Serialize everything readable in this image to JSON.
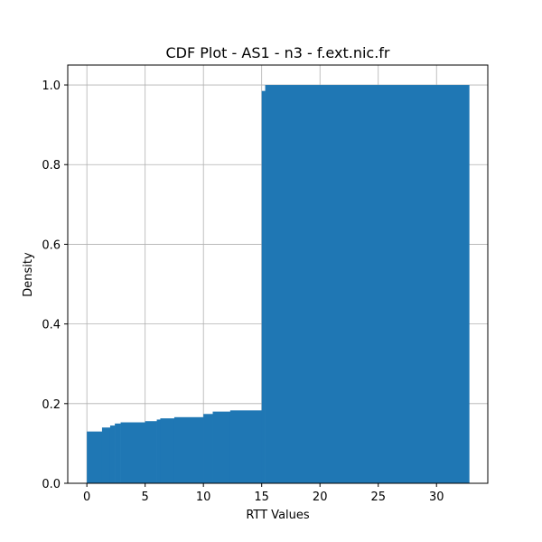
{
  "chart_data": {
    "type": "bar",
    "subtype": "cumulative-histogram",
    "title": "CDF Plot - AS1 - n3 - f.ext.nic.fr",
    "xlabel": "RTT Values",
    "ylabel": "Density",
    "xlim": [
      -1.64,
      34.4
    ],
    "ylim": [
      0,
      1.05
    ],
    "xticks": [
      0,
      5,
      10,
      15,
      20,
      25,
      30
    ],
    "yticks": [
      0.0,
      0.2,
      0.4,
      0.6,
      0.8,
      1.0
    ],
    "xtick_labels": [
      "0",
      "5",
      "10",
      "15",
      "20",
      "25",
      "30"
    ],
    "ytick_labels": [
      "0.0",
      "0.2",
      "0.4",
      "0.6",
      "0.8",
      "1.0"
    ],
    "grid": true,
    "bar_color": "#1f77b4",
    "steps": [
      {
        "x0": 0.0,
        "x1": 1.3,
        "y": 0.13
      },
      {
        "x0": 1.3,
        "x1": 2.0,
        "y": 0.14
      },
      {
        "x0": 2.0,
        "x1": 2.4,
        "y": 0.145
      },
      {
        "x0": 2.4,
        "x1": 2.9,
        "y": 0.15
      },
      {
        "x0": 2.9,
        "x1": 5.0,
        "y": 0.153
      },
      {
        "x0": 5.0,
        "x1": 6.0,
        "y": 0.156
      },
      {
        "x0": 6.0,
        "x1": 6.3,
        "y": 0.16
      },
      {
        "x0": 6.3,
        "x1": 7.5,
        "y": 0.163
      },
      {
        "x0": 7.5,
        "x1": 10.0,
        "y": 0.166
      },
      {
        "x0": 10.0,
        "x1": 10.8,
        "y": 0.174
      },
      {
        "x0": 10.8,
        "x1": 12.3,
        "y": 0.18
      },
      {
        "x0": 12.3,
        "x1": 15.0,
        "y": 0.183
      },
      {
        "x0": 15.0,
        "x1": 15.3,
        "y": 0.985
      },
      {
        "x0": 15.3,
        "x1": 32.8,
        "y": 1.0
      }
    ]
  }
}
